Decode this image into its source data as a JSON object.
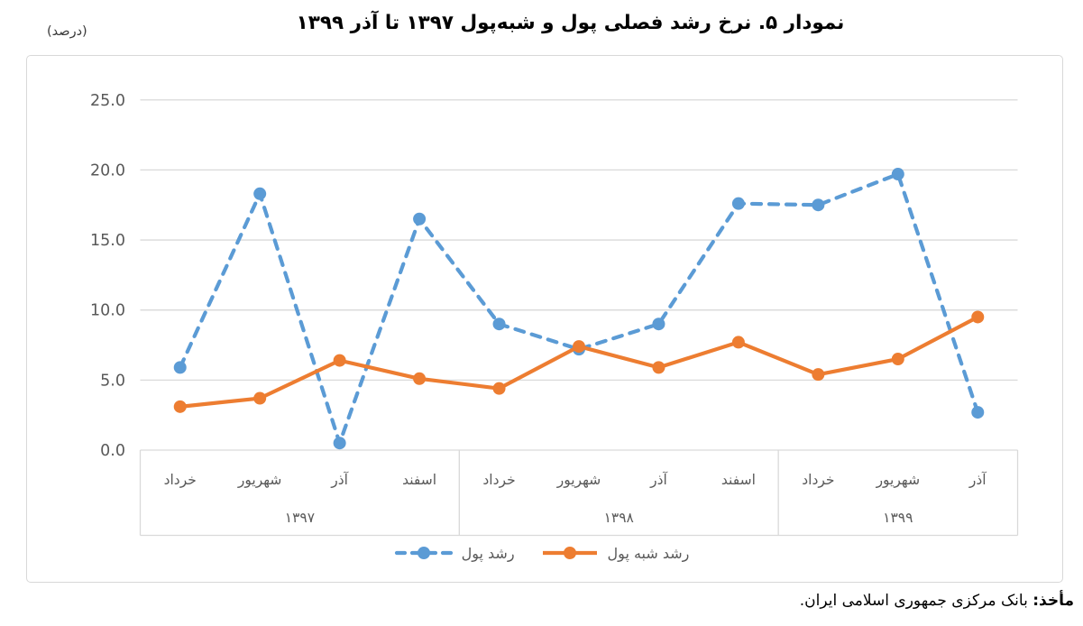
{
  "header": {
    "title": "نمودار ۵. نرخ رشد فصلی پول و شبه‌پول ۱۳۹۷ تا آذر ۱۳۹۹",
    "unit_label": "(درصد)"
  },
  "chart_data": {
    "type": "line",
    "title": "نمودار ۵. نرخ رشد فصلی پول و شبه‌پول ۱۳۹۷ تا آذر ۱۳۹۹",
    "ylabel": "(درصد)",
    "categories": [
      "خرداد",
      "شهریور",
      "آذر",
      "اسفند",
      "خرداد",
      "شهریور",
      "آذر",
      "اسفند",
      "خرداد",
      "شهریور",
      "آذر"
    ],
    "category_groups": [
      {
        "label": "۱۳۹۷",
        "span": 4
      },
      {
        "label": "۱۳۹۸",
        "span": 4
      },
      {
        "label": "۱۳۹۹",
        "span": 3
      }
    ],
    "series": [
      {
        "name": "رشد پول",
        "color": "#5B9BD5",
        "line_style": "dashed",
        "values": [
          5.9,
          18.3,
          0.5,
          16.5,
          9.0,
          7.2,
          9.0,
          17.6,
          17.5,
          19.7,
          2.7
        ]
      },
      {
        "name": "رشد شبه پول",
        "color": "#ED7D31",
        "line_style": "solid",
        "values": [
          3.1,
          3.7,
          6.4,
          5.1,
          4.4,
          7.4,
          5.9,
          7.7,
          5.4,
          6.5,
          9.5
        ]
      }
    ],
    "ylim": [
      0,
      25
    ],
    "ytick_labels": [
      "0.0",
      "5.0",
      "10.0",
      "15.0",
      "20.0",
      "25.0"
    ],
    "grid": true,
    "legend_position": "bottom"
  },
  "footer": {
    "source_label": "مأخذ:",
    "source_text": "بانک مرکزی جمهوری اسلامی ایران."
  },
  "colors": {
    "grid": "#D9D9D9",
    "axis_text": "#595959",
    "border": "#D8D8D8"
  }
}
